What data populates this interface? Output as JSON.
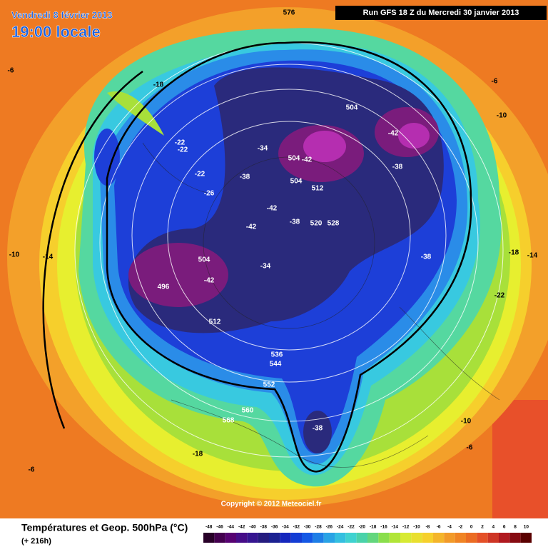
{
  "header": {
    "date": "Vendredi 8 février 2013",
    "time": "19:00 locale",
    "run": "Run GFS 18 Z du Mercredi 30 janvier 2013"
  },
  "map": {
    "labels": [
      "576",
      "-6",
      "-18",
      "-22",
      "-22",
      "-22",
      "-26",
      "-34",
      "-38",
      "504",
      "-42",
      "504",
      "512",
      "504",
      "-42",
      "-38",
      "-42",
      "-42",
      "-38",
      "520",
      "528",
      "-34",
      "504",
      "-42",
      "496",
      "512",
      "-38",
      "-18",
      "-14",
      "-22",
      "-10",
      "-14",
      "-6",
      "-10",
      "536",
      "544",
      "552",
      "560",
      "568",
      "-38",
      "-18",
      "-10",
      "-6",
      "-6"
    ],
    "copyright": "Copyright © 2012 Meteociel.fr"
  },
  "footer": {
    "title": "Températures et Geop. 500hPa (°C)",
    "lead": "(+ 216h)",
    "scale": [
      "-48",
      "-46",
      "-44",
      "-42",
      "-40",
      "-38",
      "-36",
      "-34",
      "-32",
      "-30",
      "-28",
      "-26",
      "-24",
      "-22",
      "-20",
      "-18",
      "-16",
      "-14",
      "-12",
      "-10",
      "-8",
      "-6",
      "-4",
      "-2",
      "0",
      "2",
      "4",
      "6",
      "8",
      "10"
    ]
  }
}
